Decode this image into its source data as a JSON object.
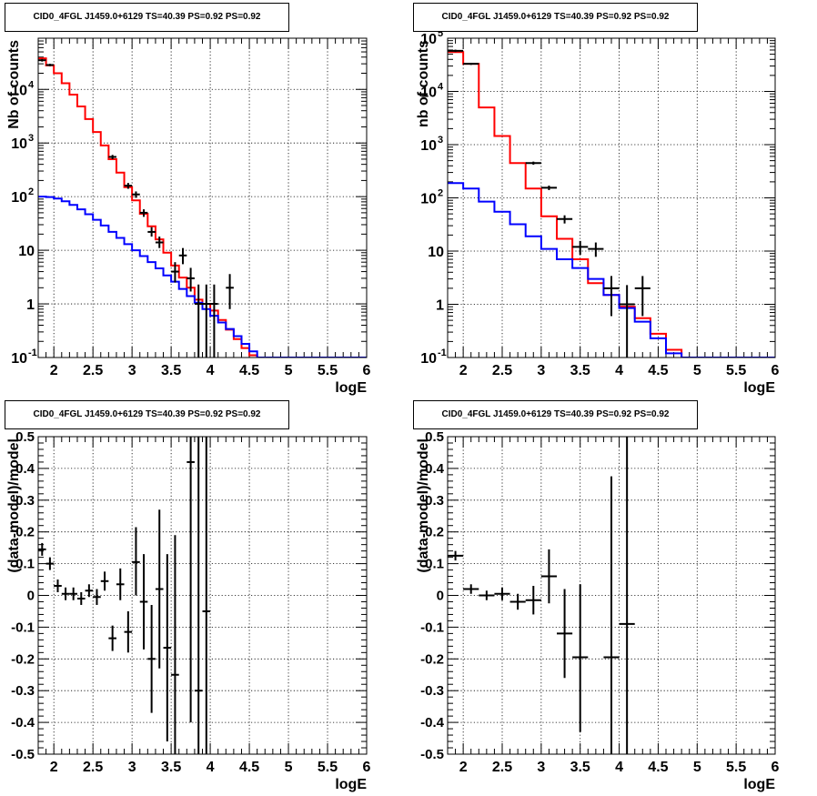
{
  "panels": [
    {
      "title": "CID0_4FGL J1459.0+6129 TS=40.39 PS=0.92 PS=0.92"
    },
    {
      "title": "CID0_4FGL J1459.0+6129 TS=40.39 PS=0.92 PS=0.92"
    },
    {
      "title": "CID0_4FGL J1459.0+6129 TS=40.39 PS=0.92 PS=0.92"
    },
    {
      "title": "CID0_4FGL J1459.0+6129 TS=40.39 PS=0.92 PS=0.92"
    }
  ],
  "colors": {
    "data": "#000000",
    "total_model": "#ff0000",
    "source_model": "#0000ff",
    "grid": "#000000"
  },
  "chart_data": [
    {
      "type": "line",
      "title": "CID0_4FGL J1459.0+6129 TS=40.39 PS=0.92 PS=0.92",
      "xlabel": "logE",
      "ylabel": "Nb of counts",
      "xlim": [
        1.8,
        6.0
      ],
      "ylim": [
        0.1,
        90000
      ],
      "yscale": "log",
      "grid": true,
      "xticks": [
        "2",
        "2.5",
        "3",
        "3.5",
        "4",
        "4.5",
        "5",
        "5.5",
        "6"
      ],
      "yticks": [
        {
          "value": 0.1,
          "base": "10",
          "exp": "-1"
        },
        {
          "value": 1,
          "label": "1"
        },
        {
          "value": 10,
          "label": "10"
        },
        {
          "value": 100,
          "base": "10",
          "exp": "2"
        },
        {
          "value": 1000,
          "base": "10",
          "exp": "3"
        },
        {
          "value": 10000,
          "base": "10",
          "exp": "4"
        }
      ],
      "bin_edges": [
        1.8,
        1.9,
        2.0,
        2.1,
        2.2,
        2.3,
        2.4,
        2.5,
        2.6,
        2.7,
        2.8,
        2.9,
        3.0,
        3.1,
        3.2,
        3.3,
        3.4,
        3.5,
        3.6,
        3.7,
        3.8,
        3.9,
        4.0,
        4.1,
        4.2,
        4.3,
        4.4,
        4.5,
        4.6,
        4.7,
        4.8,
        4.9,
        5.0,
        5.1,
        5.2,
        5.3,
        5.4,
        5.5,
        5.6,
        5.7,
        5.8,
        5.9,
        6.0
      ],
      "series": [
        {
          "role": "total_model",
          "values": [
            38000,
            28000,
            20000,
            13000,
            8000,
            4800,
            2800,
            1600,
            900,
            500,
            280,
            150,
            85,
            48,
            28,
            16,
            9,
            5.2,
            3.1,
            2.0,
            1.2,
            1.0,
            0.75,
            0.5,
            0.33,
            0.22,
            0.15,
            0.11,
            0.1,
            0.1,
            0.1,
            0.1,
            0.1,
            0.1,
            0.1,
            0.1,
            0.1,
            0.1,
            0.1,
            0.1,
            0.1,
            0.1
          ]
        },
        {
          "role": "source_model",
          "values": [
            100,
            98,
            92,
            82,
            70,
            58,
            47,
            37,
            29,
            22,
            17,
            13,
            10,
            7.8,
            6.0,
            4.6,
            3.4,
            2.6,
            1.9,
            1.4,
            1.05,
            0.8,
            0.6,
            0.45,
            0.34,
            0.25,
            0.18,
            0.13,
            0.1,
            0.1,
            0.1,
            0.1,
            0.1,
            0.1,
            0.1,
            0.1,
            0.1,
            0.1,
            0.1,
            0.1,
            0.1,
            0.1
          ]
        },
        {
          "role": "data",
          "points": [
            {
              "x": 1.85,
              "y": 35000,
              "ylo": 33000,
              "yhi": 37000
            },
            {
              "x": 1.95,
              "y": 28500,
              "ylo": 27000,
              "yhi": 30000
            },
            {
              "x": 2.75,
              "y": 550,
              "ylo": 500,
              "yhi": 600
            },
            {
              "x": 2.95,
              "y": 160,
              "ylo": 140,
              "yhi": 180
            },
            {
              "x": 3.05,
              "y": 110,
              "ylo": 95,
              "yhi": 125
            },
            {
              "x": 3.15,
              "y": 50,
              "ylo": 42,
              "yhi": 58
            },
            {
              "x": 3.25,
              "y": 22,
              "ylo": 18,
              "yhi": 27
            },
            {
              "x": 3.35,
              "y": 14,
              "ylo": 11,
              "yhi": 18
            },
            {
              "x": 3.55,
              "y": 4,
              "ylo": 2.5,
              "yhi": 6
            },
            {
              "x": 3.65,
              "y": 8,
              "ylo": 5.5,
              "yhi": 11
            },
            {
              "x": 3.75,
              "y": 3,
              "ylo": 1.7,
              "yhi": 4.7
            },
            {
              "x": 3.85,
              "y": 1,
              "ylo": 0.1,
              "yhi": 2.3
            },
            {
              "x": 3.95,
              "y": 1,
              "ylo": 0.1,
              "yhi": 2.3
            },
            {
              "x": 4.05,
              "y": 1,
              "ylo": 0.1,
              "yhi": 2.3
            },
            {
              "x": 4.25,
              "y": 2,
              "ylo": 0.8,
              "yhi": 3.6
            }
          ]
        }
      ]
    },
    {
      "type": "line",
      "title": "CID0_4FGL J1459.0+6129 TS=40.39 PS=0.92 PS=0.92",
      "xlabel": "logE",
      "ylabel": "nb of counts",
      "xlim": [
        1.8,
        6.0
      ],
      "ylim": [
        0.1,
        100000
      ],
      "yscale": "log",
      "grid": true,
      "xticks": [
        "2",
        "2.5",
        "3",
        "3.5",
        "4",
        "4.5",
        "5",
        "5.5",
        "6"
      ],
      "yticks": [
        {
          "value": 0.1,
          "base": "10",
          "exp": "-1"
        },
        {
          "value": 1,
          "label": "1"
        },
        {
          "value": 10,
          "label": "10"
        },
        {
          "value": 100,
          "base": "10",
          "exp": "2"
        },
        {
          "value": 1000,
          "base": "10",
          "exp": "3"
        },
        {
          "value": 10000,
          "base": "10",
          "exp": "4"
        },
        {
          "value": 100000,
          "base": "10",
          "exp": "5"
        }
      ],
      "bin_edges": [
        1.8,
        2.0,
        2.2,
        2.4,
        2.6,
        2.8,
        3.0,
        3.2,
        3.4,
        3.6,
        3.8,
        4.0,
        4.2,
        4.4,
        4.6,
        4.8,
        5.0,
        5.2,
        5.4,
        5.6,
        5.8,
        6.0
      ],
      "series": [
        {
          "role": "total_model",
          "values": [
            55000,
            33000,
            5000,
            1450,
            450,
            150,
            45,
            17,
            7.0,
            2.5,
            1.5,
            0.9,
            0.55,
            0.28,
            0.14,
            0.1,
            0.1,
            0.1,
            0.1,
            0.1,
            0.1
          ]
        },
        {
          "role": "source_model",
          "values": [
            190,
            150,
            85,
            55,
            32,
            19,
            11,
            7.0,
            4.8,
            3.0,
            1.5,
            0.85,
            0.47,
            0.23,
            0.12,
            0.1,
            0.1,
            0.1,
            0.1,
            0.1,
            0.1
          ]
        },
        {
          "role": "data",
          "points": [
            {
              "x": 1.9,
              "y": 58000,
              "ylo": 55000,
              "yhi": 61000
            },
            {
              "x": 2.1,
              "y": 33000,
              "ylo": 31500,
              "yhi": 34500
            },
            {
              "x": 2.9,
              "y": 450,
              "ylo": 420,
              "yhi": 480
            },
            {
              "x": 3.1,
              "y": 155,
              "ylo": 140,
              "yhi": 170
            },
            {
              "x": 3.3,
              "y": 40,
              "ylo": 33,
              "yhi": 47
            },
            {
              "x": 3.5,
              "y": 12,
              "ylo": 8.5,
              "yhi": 15.5
            },
            {
              "x": 3.7,
              "y": 11,
              "ylo": 7.8,
              "yhi": 14.5
            },
            {
              "x": 3.9,
              "y": 2,
              "ylo": 0.6,
              "yhi": 3.4
            },
            {
              "x": 4.1,
              "y": 1,
              "ylo": 0.1,
              "yhi": 2.3
            },
            {
              "x": 4.3,
              "y": 2,
              "ylo": 0.6,
              "yhi": 3.4
            }
          ]
        }
      ]
    },
    {
      "type": "scatter",
      "title": "CID0_4FGL J1459.0+6129 TS=40.39 PS=0.92 PS=0.92",
      "xlabel": "logE",
      "ylabel": "(data-model)/model",
      "xlim": [
        1.8,
        6.0
      ],
      "ylim": [
        -0.5,
        0.5
      ],
      "grid": true,
      "xticks": [
        "2",
        "2.5",
        "3",
        "3.5",
        "4",
        "4.5",
        "5",
        "5.5",
        "6"
      ],
      "yticks": [
        "-0.5",
        "-0.4",
        "-0.3",
        "-0.2",
        "-0.1",
        "0",
        "0.1",
        "0.2",
        "0.3",
        "0.4",
        "0.5"
      ],
      "xerr": 0.05,
      "series": [
        {
          "role": "data",
          "points": [
            {
              "x": 1.85,
              "y": 0.145,
              "ylo": 0.125,
              "yhi": 0.165
            },
            {
              "x": 1.95,
              "y": 0.1,
              "ylo": 0.08,
              "yhi": 0.12
            },
            {
              "x": 2.05,
              "y": 0.03,
              "ylo": 0.01,
              "yhi": 0.05
            },
            {
              "x": 2.15,
              "y": 0.005,
              "ylo": -0.015,
              "yhi": 0.025
            },
            {
              "x": 2.25,
              "y": 0.005,
              "ylo": -0.015,
              "yhi": 0.025
            },
            {
              "x": 2.35,
              "y": -0.01,
              "ylo": -0.03,
              "yhi": 0.01
            },
            {
              "x": 2.45,
              "y": 0.015,
              "ylo": -0.005,
              "yhi": 0.035
            },
            {
              "x": 2.55,
              "y": -0.005,
              "ylo": -0.03,
              "yhi": 0.02
            },
            {
              "x": 2.65,
              "y": 0.045,
              "ylo": 0.015,
              "yhi": 0.075
            },
            {
              "x": 2.75,
              "y": -0.135,
              "ylo": -0.175,
              "yhi": -0.095
            },
            {
              "x": 2.85,
              "y": 0.035,
              "ylo": -0.015,
              "yhi": 0.085
            },
            {
              "x": 2.95,
              "y": -0.115,
              "ylo": -0.18,
              "yhi": -0.05
            },
            {
              "x": 3.05,
              "y": 0.105,
              "ylo": 0.0,
              "yhi": 0.215
            },
            {
              "x": 3.15,
              "y": -0.02,
              "ylo": -0.17,
              "yhi": 0.13
            },
            {
              "x": 3.25,
              "y": -0.2,
              "ylo": -0.37,
              "yhi": -0.03
            },
            {
              "x": 3.35,
              "y": 0.02,
              "ylo": -0.23,
              "yhi": 0.27
            },
            {
              "x": 3.45,
              "y": -0.165,
              "ylo": -0.46,
              "yhi": 0.13
            },
            {
              "x": 3.55,
              "y": -0.25,
              "ylo": -0.5,
              "yhi": 0.19
            },
            {
              "x": 3.75,
              "y": 0.42,
              "ylo": -0.4,
              "yhi": 0.5
            },
            {
              "x": 3.85,
              "y": -0.3,
              "ylo": -0.5,
              "yhi": 0.5
            },
            {
              "x": 3.95,
              "y": -0.05,
              "ylo": -0.5,
              "yhi": 0.5
            }
          ]
        }
      ]
    },
    {
      "type": "scatter",
      "title": "CID0_4FGL J1459.0+6129 TS=40.39 PS=0.92 PS=0.92",
      "xlabel": "logE",
      "ylabel": "(data-model)/model",
      "xlim": [
        1.8,
        6.0
      ],
      "ylim": [
        -0.5,
        0.5
      ],
      "grid": true,
      "xticks": [
        "2",
        "2.5",
        "3",
        "3.5",
        "4",
        "4.5",
        "5",
        "5.5",
        "6"
      ],
      "yticks": [
        "-0.5",
        "-0.4",
        "-0.3",
        "-0.2",
        "-0.1",
        "0",
        "0.1",
        "0.2",
        "0.3",
        "0.4",
        "0.5"
      ],
      "xerr": 0.1,
      "series": [
        {
          "role": "data",
          "points": [
            {
              "x": 1.9,
              "y": 0.125,
              "ylo": 0.11,
              "yhi": 0.14
            },
            {
              "x": 2.1,
              "y": 0.02,
              "ylo": 0.005,
              "yhi": 0.035
            },
            {
              "x": 2.3,
              "y": 0.0,
              "ylo": -0.015,
              "yhi": 0.015
            },
            {
              "x": 2.5,
              "y": 0.005,
              "ylo": -0.015,
              "yhi": 0.025
            },
            {
              "x": 2.7,
              "y": -0.02,
              "ylo": -0.045,
              "yhi": 0.005
            },
            {
              "x": 2.9,
              "y": -0.015,
              "ylo": -0.06,
              "yhi": 0.03
            },
            {
              "x": 3.1,
              "y": 0.06,
              "ylo": -0.025,
              "yhi": 0.145
            },
            {
              "x": 3.3,
              "y": -0.12,
              "ylo": -0.26,
              "yhi": 0.02
            },
            {
              "x": 3.5,
              "y": -0.195,
              "ylo": -0.43,
              "yhi": 0.035
            },
            {
              "x": 3.9,
              "y": -0.195,
              "ylo": -0.5,
              "yhi": 0.375
            },
            {
              "x": 4.1,
              "y": -0.09,
              "ylo": -0.5,
              "yhi": 0.5
            }
          ]
        }
      ]
    }
  ]
}
